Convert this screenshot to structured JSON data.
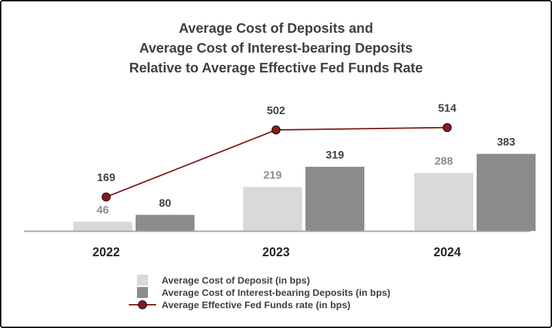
{
  "chart_data": {
    "type": "bar",
    "title_lines": [
      "Average Cost of Deposits and",
      "Average Cost of Interest-bearing Deposits",
      "Relative to Average Effective Fed Funds Rate"
    ],
    "categories": [
      "2022",
      "2023",
      "2024"
    ],
    "series": [
      {
        "name": "Average Cost of Deposit (in bps)",
        "kind": "bar",
        "color": "#d9d9d9",
        "label_color": "#8c8c8c",
        "values": [
          46,
          219,
          288
        ]
      },
      {
        "name": "Average Cost of Interest-bearing Deposits (in bps)",
        "kind": "bar",
        "color": "#8c8c8c",
        "label_color": "#404040",
        "values": [
          80,
          319,
          383
        ]
      },
      {
        "name": "Average Effective Fed Funds rate (in bps)",
        "kind": "line",
        "color": "#7f1d1d",
        "marker_color": "#8b1a1a",
        "values": [
          169,
          502,
          514
        ]
      }
    ],
    "xlabel": "",
    "ylabel": "",
    "ylim": [
      0,
      700
    ],
    "grid": false,
    "legend_position": "bottom-center",
    "axis_color": "#a6a6a6"
  }
}
